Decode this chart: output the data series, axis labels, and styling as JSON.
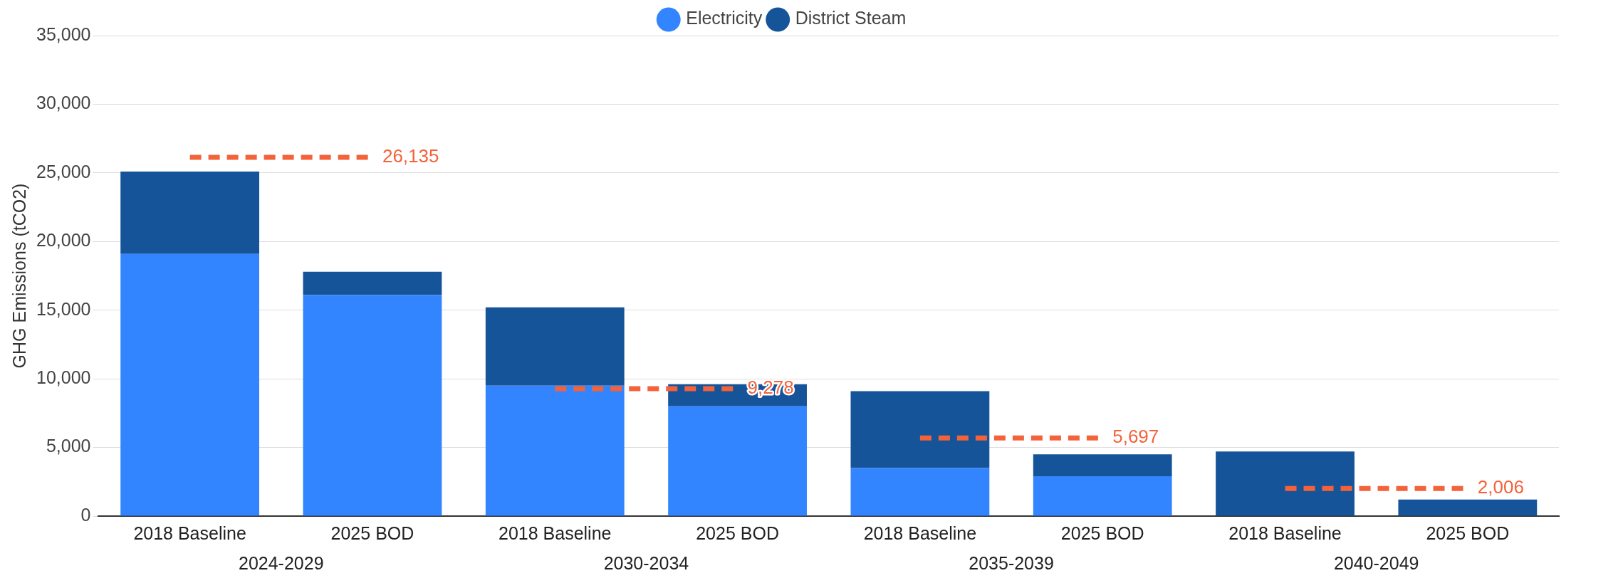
{
  "chart_data": {
    "type": "bar",
    "stacked": true,
    "ylabel": "GHG Emissions (tCO2)",
    "categories": [
      "2018 Baseline",
      "2025 BOD",
      "2018 Baseline",
      "2025 BOD",
      "2018 Baseline",
      "2025 BOD",
      "2018 Baseline",
      "2025 BOD"
    ],
    "annotations": [
      "2024-2029",
      "2030-2034",
      "2035-2039",
      "2040-2049"
    ],
    "series": [
      {
        "name": "Electricity",
        "color": "#3385ff",
        "values": [
          19100,
          16100,
          9500,
          8000,
          3500,
          2900,
          0,
          0
        ]
      },
      {
        "name": "District Steam",
        "color": "#16549a",
        "values": [
          6000,
          1700,
          5700,
          1600,
          5600,
          1600,
          4700,
          1200
        ]
      },
      {
        "type": "line",
        "color": "#f4623a",
        "line_style": "dashed",
        "marker": "none",
        "values": [
          26135,
          26135,
          9278,
          9278,
          5697,
          5697,
          2006,
          2006
        ],
        "value_labels": [
          null,
          "26,135",
          null,
          "9,278",
          null,
          "5,697",
          null,
          "2,006"
        ]
      }
    ],
    "ylim": [
      0,
      35000
    ],
    "yticks": [
      0,
      {
        "value": 5000,
        "label": "5,000"
      },
      {
        "value": 10000,
        "label": "10,000"
      },
      {
        "value": 15000,
        "label": "15,000"
      },
      {
        "value": 20000,
        "label": "20,000"
      },
      {
        "value": 25000,
        "label": "25,000"
      },
      {
        "value": 30000,
        "label": "30,000"
      },
      {
        "value": 35000,
        "label": "35,000"
      }
    ],
    "grid": "y",
    "legend": "top"
  }
}
